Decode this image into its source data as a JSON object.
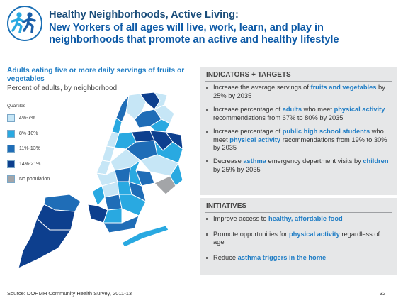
{
  "header": {
    "title_line1": "Healthy Neighborhoods, Active Living:",
    "title_line2": "New Yorkers of all ages will live, work, learn, and play in",
    "title_line3": "neighborhoods that promote an active and healthy lifestyle",
    "logo_icon": "running-children-icon"
  },
  "map": {
    "heading": "Adults eating five or more daily servings of fruits or vegetables",
    "subheading": "Percent of adults, by neighborhood",
    "legend_title": "Quartiles",
    "legend": [
      {
        "label": "4%-7%",
        "color": "#c6e6f6"
      },
      {
        "label": "8%-10%",
        "color": "#29a9e1"
      },
      {
        "label": "11%-13%",
        "color": "#1f6db7"
      },
      {
        "label": "14%-21%",
        "color": "#0d3f8e"
      },
      {
        "label": "No population",
        "color": "#a3a5a8"
      }
    ]
  },
  "indicators": {
    "heading": "INDICATORS + TARGETS",
    "items": [
      {
        "pre": "Increase the average servings of ",
        "hl": "fruits and vegetables",
        "post": " by 25% by 2035"
      },
      {
        "pre": "Increase percentage of ",
        "hl": "adults",
        "mid": " who meet ",
        "hl2": "physical activity",
        "post": " recommendations from 67% to 80% by 2035"
      },
      {
        "pre": "Increase percentage of ",
        "hl": "public high school students",
        "mid": " who meet ",
        "hl2": "physical activity",
        "post": " recommendations from 19% to 30% by 2035"
      },
      {
        "pre": "Decrease ",
        "hl": "asthma",
        "mid": " emergency department visits by ",
        "hl2": "children",
        "post": " by 25% by 2035"
      }
    ]
  },
  "initiatives": {
    "heading": "INITIATIVES",
    "items": [
      {
        "pre": "Improve access to ",
        "hl": "healthy, affordable food",
        "post": ""
      },
      {
        "pre": "Promote opportunities for ",
        "hl": "physical activity",
        "post": " regardless of age"
      },
      {
        "pre": "Reduce ",
        "hl": "asthma triggers in the home",
        "post": ""
      }
    ]
  },
  "footer": {
    "source": "Source: DOHMH Community Health Survey, 2011-13",
    "page": "32"
  }
}
